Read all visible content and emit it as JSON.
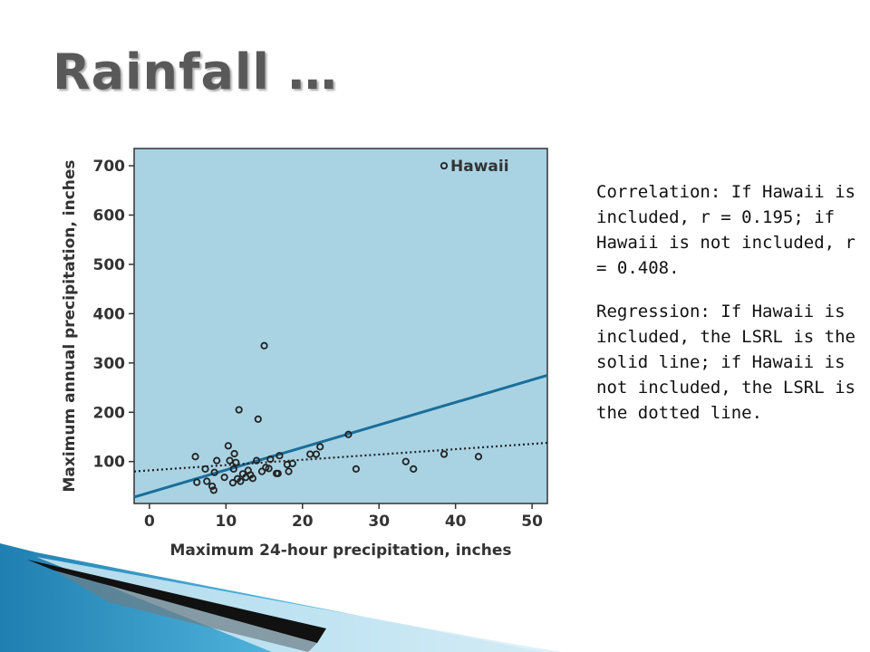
{
  "slide": {
    "title": "Rainfall …",
    "correlation_text": "Correlation:  If Hawaii is included, r = 0.195; if Hawaii is not included, r = 0.408.",
    "regression_text": "Regression:  If Hawaii is included, the LSRL is the solid line; if Hawaii is not included, the LSRL is the dotted line."
  },
  "colors": {
    "plot_bg": "#a9d3e3",
    "solid_line": "#1a6e9a",
    "dotted_line": "#222222",
    "marker": "#222222",
    "title": "#595959",
    "accent_blue": "#2a93c4"
  },
  "chart_data": {
    "type": "scatter",
    "xlabel": "Maximum 24-hour precipitation, inches",
    "ylabel": "Maximum annual precipitation, inches",
    "xlim": [
      -2,
      52
    ],
    "ylim": [
      15,
      735
    ],
    "xticks": [
      0,
      10,
      20,
      30,
      40,
      50
    ],
    "yticks": [
      100,
      200,
      300,
      400,
      500,
      600,
      700
    ],
    "grid": false,
    "series": [
      {
        "points": [
          [
            6,
            110
          ],
          [
            6.2,
            58
          ],
          [
            7.3,
            85
          ],
          [
            7.5,
            60
          ],
          [
            8.2,
            50
          ],
          [
            8.4,
            42
          ],
          [
            8.5,
            78
          ],
          [
            8.8,
            102
          ],
          [
            9.8,
            68
          ],
          [
            10.3,
            132
          ],
          [
            10.5,
            102
          ],
          [
            10.9,
            57
          ],
          [
            11.0,
            85
          ],
          [
            11.1,
            116
          ],
          [
            11.3,
            98
          ],
          [
            11.5,
            65
          ],
          [
            11.7,
            205
          ],
          [
            11.9,
            60
          ],
          [
            12.2,
            75
          ],
          [
            12.6,
            68
          ],
          [
            12.9,
            82
          ],
          [
            13.2,
            73
          ],
          [
            13.5,
            66
          ],
          [
            14.0,
            102
          ],
          [
            14.2,
            186
          ],
          [
            14.7,
            80
          ],
          [
            15.0,
            335
          ],
          [
            15.2,
            88
          ],
          [
            15.6,
            86
          ],
          [
            15.8,
            105
          ],
          [
            16.6,
            76
          ],
          [
            16.8,
            76
          ],
          [
            17.0,
            112
          ],
          [
            18.0,
            94
          ],
          [
            18.2,
            80
          ],
          [
            18.7,
            96
          ],
          [
            21.0,
            115
          ],
          [
            21.8,
            115
          ],
          [
            22.3,
            130
          ],
          [
            26.0,
            155
          ],
          [
            27.0,
            85
          ],
          [
            33.5,
            100
          ],
          [
            34.5,
            85
          ],
          [
            38.5,
            115
          ],
          [
            43.0,
            110
          ]
        ]
      },
      {
        "name": "Hawaii",
        "points": [
          [
            38.5,
            700
          ]
        ]
      }
    ],
    "lines": [
      {
        "style": "solid",
        "from": [
          -2,
          28
        ],
        "to": [
          52,
          275
        ]
      },
      {
        "style": "dotted",
        "from": [
          -2,
          80
        ],
        "to": [
          52,
          138
        ]
      }
    ],
    "annotations": [
      {
        "text": "Hawaii",
        "x": 38.5,
        "y": 700
      }
    ]
  }
}
